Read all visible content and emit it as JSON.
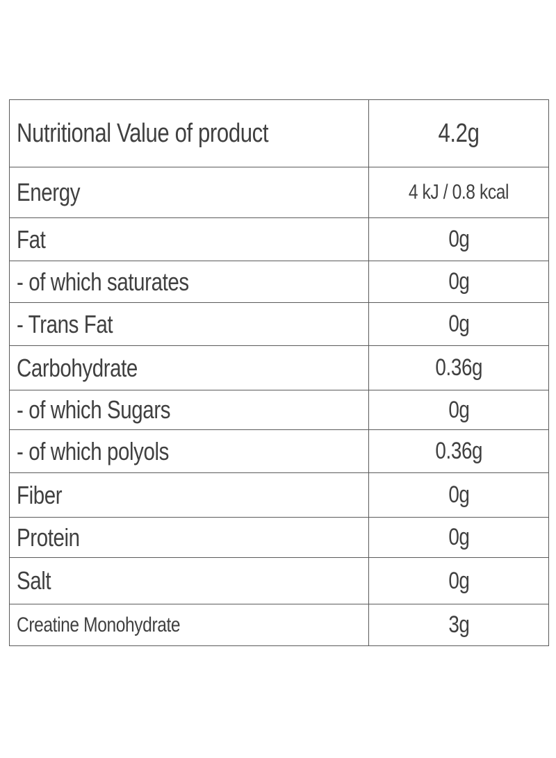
{
  "table": {
    "header": {
      "label": "Nutritional Value of product",
      "value": "4.2g"
    },
    "rows": [
      {
        "label": "Energy",
        "value": "4 kJ / 0.8 kcal"
      },
      {
        "label": "Fat",
        "value": "0g"
      },
      {
        "label": "- of which saturates",
        "value": "0g"
      },
      {
        "label": "- Trans Fat",
        "value": "0g"
      },
      {
        "label": "Carbohydrate",
        "value": "0.36g"
      },
      {
        "label": "- of which Sugars",
        "value": "0g"
      },
      {
        "label": "- of which polyols",
        "value": "0.36g"
      },
      {
        "label": "Fiber",
        "value": "0g"
      },
      {
        "label": "Protein",
        "value": "0g"
      },
      {
        "label": "Salt",
        "value": "0g"
      },
      {
        "label": "Creatine Monohydrate",
        "value": "3g"
      }
    ]
  }
}
